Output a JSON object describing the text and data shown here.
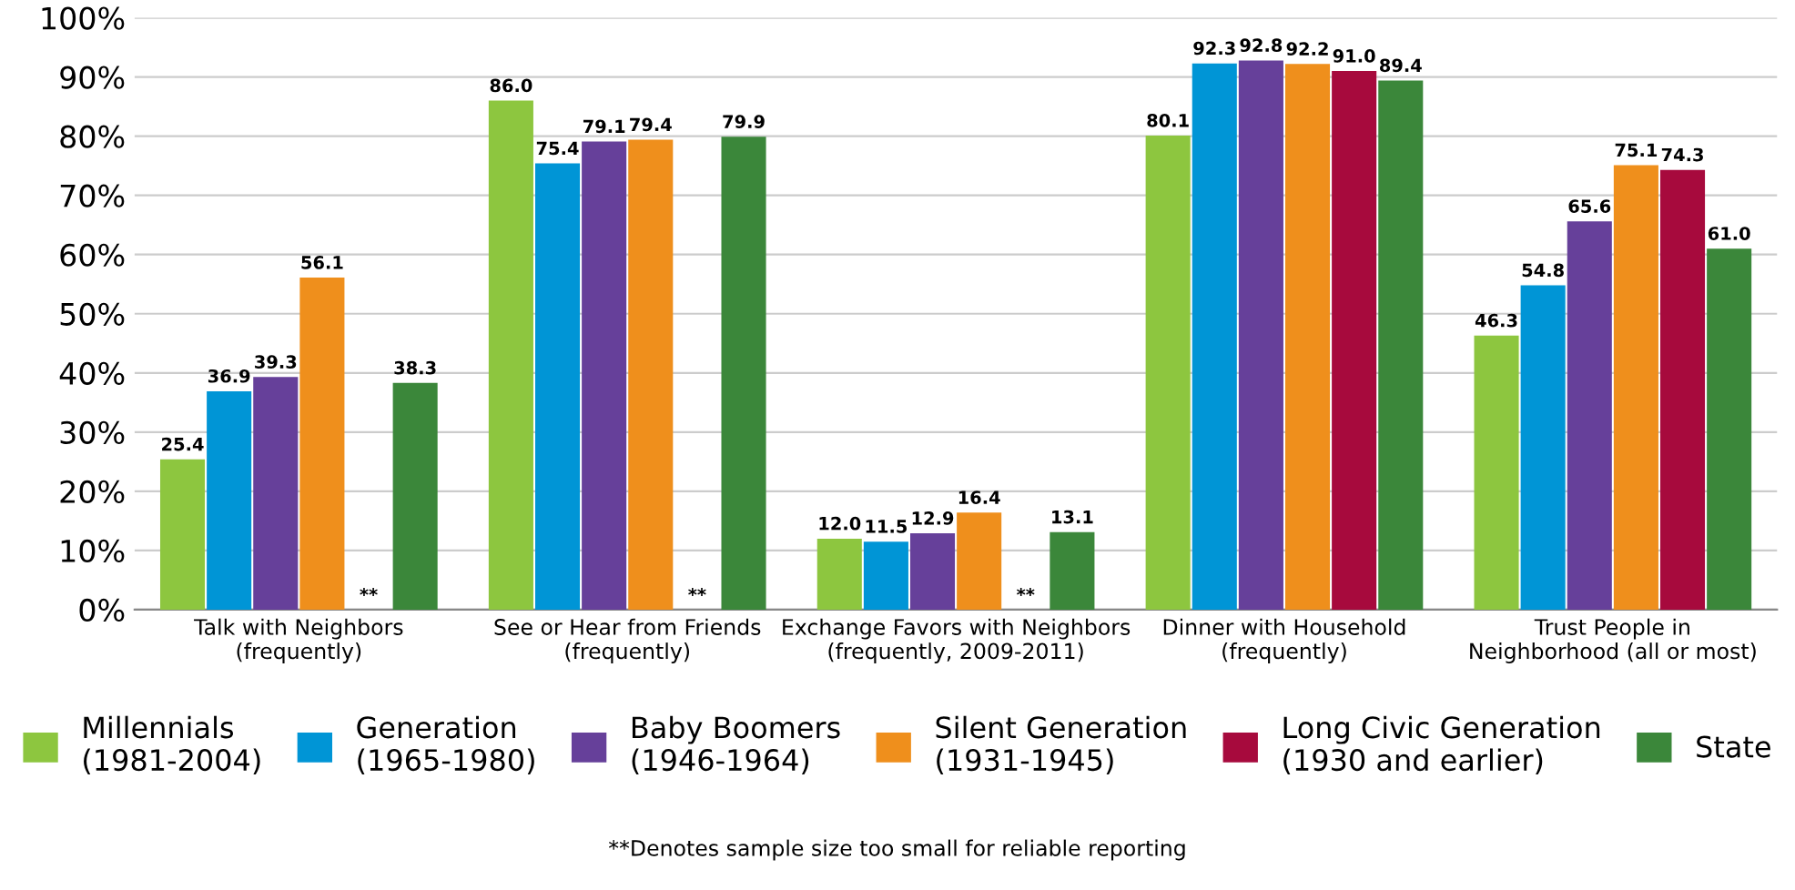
{
  "chart_data": {
    "type": "bar",
    "categories": [
      "Talk with Neighbors\n(frequently)",
      "See or Hear from Friends\n(frequently)",
      "Exchange Favors with Neighbors\n(frequently, 2009-2011)",
      "Dinner with Household\n(frequently)",
      "Trust People in\nNeighborhood (all or most)"
    ],
    "series": [
      {
        "name": "Millennials\n(1981-2004)",
        "color": "#8dc63f",
        "values": [
          25.4,
          86.0,
          12.0,
          80.1,
          46.3
        ],
        "value_labels": [
          "25.4",
          "86.0",
          "12.0",
          "80.1",
          "46.3"
        ]
      },
      {
        "name": "Generation\n(1965-1980)",
        "color": "#0095d6",
        "values": [
          36.9,
          75.4,
          11.5,
          92.3,
          54.8
        ],
        "value_labels": [
          "36.9",
          "75.4",
          "11.5",
          "92.3",
          "54.8"
        ]
      },
      {
        "name": "Baby Boomers\n(1946-1964)",
        "color": "#66409a",
        "values": [
          39.3,
          79.1,
          12.9,
          92.8,
          65.6
        ],
        "value_labels": [
          "39.3",
          "79.1",
          "12.9",
          "92.8",
          "65.6"
        ]
      },
      {
        "name": "Silent Generation\n(1931-1945)",
        "color": "#ef8f1c",
        "values": [
          56.1,
          79.4,
          16.4,
          92.2,
          75.1
        ],
        "value_labels": [
          "56.1",
          "79.4",
          "16.4",
          "92.2",
          "75.1"
        ]
      },
      {
        "name": "Long Civic Generation\n(1930 and earlier)",
        "color": "#a70a3d",
        "values": [
          null,
          null,
          null,
          91.0,
          74.3
        ],
        "value_labels": [
          "**",
          "**",
          "**",
          "91.0",
          "74.3"
        ]
      },
      {
        "name": "State",
        "color": "#3b873a",
        "values": [
          38.3,
          79.9,
          13.1,
          89.4,
          61.0
        ],
        "value_labels": [
          "38.3",
          "79.9",
          "13.1",
          "89.4",
          "61.0"
        ]
      }
    ],
    "ylim": [
      0,
      100
    ],
    "yticks": [
      {
        "value": 0,
        "label": "0%"
      },
      {
        "value": 10,
        "label": "10%"
      },
      {
        "value": 20,
        "label": "20%"
      },
      {
        "value": 30,
        "label": "30%"
      },
      {
        "value": 40,
        "label": "40%"
      },
      {
        "value": 50,
        "label": "50%"
      },
      {
        "value": 60,
        "label": "60%"
      },
      {
        "value": 70,
        "label": "70%"
      },
      {
        "value": 80,
        "label": "80%"
      },
      {
        "value": 90,
        "label": "90%"
      },
      {
        "value": 100,
        "label": "100%"
      }
    ],
    "grid": "y",
    "legend": "bottom",
    "annotations": [
      "**Denotes sample size too small for reliable reporting"
    ]
  }
}
